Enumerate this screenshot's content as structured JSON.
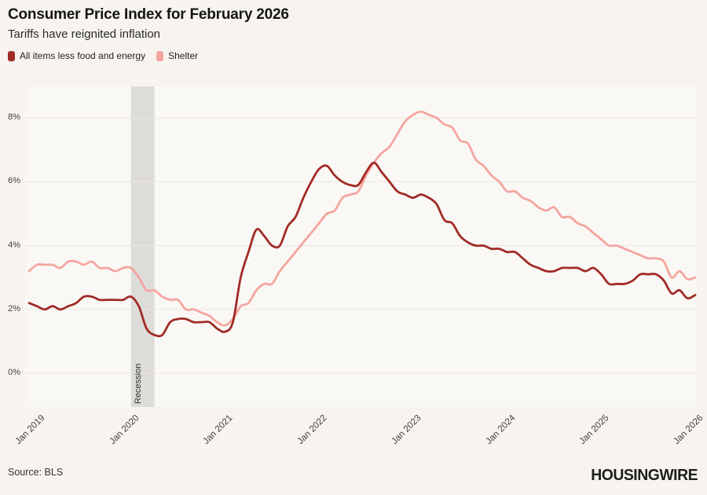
{
  "chart_data": {
    "type": "line",
    "title": "Consumer Price Index for February 2026",
    "subtitle": "Tariffs have reignited inflation",
    "x_start": "2019-01",
    "x_end": "2026-02",
    "x_interval": "monthly",
    "x_tick_labels": [
      "Jan 2019",
      "Jan 2020",
      "Jan 2021",
      "Jan 2022",
      "Jan 2023",
      "Jan 2024",
      "Jan 2025",
      "Jan 2026"
    ],
    "x_tick_month_indices": [
      0,
      12,
      24,
      36,
      48,
      60,
      72,
      84
    ],
    "y_ticks": [
      0,
      2,
      4,
      6,
      8
    ],
    "y_tick_labels": [
      "0%",
      "2%",
      "4%",
      "6%",
      "8%"
    ],
    "ylim": [
      -1,
      9
    ],
    "grid": "horizontal-only",
    "legend_position": "top-left",
    "series": [
      {
        "id": "core",
        "name": "All items less food and energy",
        "color": "#a12b27",
        "values": [
          2.2,
          2.1,
          2.0,
          2.1,
          2.0,
          2.1,
          2.2,
          2.4,
          2.4,
          2.3,
          2.3,
          2.3,
          2.3,
          2.4,
          2.1,
          1.4,
          1.2,
          1.2,
          1.6,
          1.7,
          1.7,
          1.6,
          1.6,
          1.6,
          1.4,
          1.3,
          1.6,
          3.0,
          3.8,
          4.5,
          4.3,
          4.0,
          4.0,
          4.6,
          4.9,
          5.5,
          6.0,
          6.4,
          6.5,
          6.2,
          6.0,
          5.9,
          5.9,
          6.3,
          6.6,
          6.3,
          6.0,
          5.7,
          5.6,
          5.5,
          5.6,
          5.5,
          5.3,
          4.8,
          4.7,
          4.3,
          4.1,
          4.0,
          4.0,
          3.9,
          3.9,
          3.8,
          3.8,
          3.6,
          3.4,
          3.3,
          3.2,
          3.2,
          3.3,
          3.3,
          3.3,
          3.2,
          3.3,
          3.1,
          2.8,
          2.8,
          2.8,
          2.9,
          3.1,
          3.1,
          3.1,
          2.9,
          2.5,
          2.6,
          2.35,
          2.45
        ]
      },
      {
        "id": "shelter",
        "name": "Shelter",
        "color": "#f4a5a0",
        "values": [
          3.2,
          3.4,
          3.4,
          3.4,
          3.3,
          3.5,
          3.5,
          3.4,
          3.5,
          3.3,
          3.3,
          3.2,
          3.3,
          3.3,
          3.0,
          2.6,
          2.6,
          2.4,
          2.3,
          2.3,
          2.0,
          2.0,
          1.9,
          1.8,
          1.6,
          1.5,
          1.7,
          2.1,
          2.2,
          2.6,
          2.8,
          2.8,
          3.2,
          3.5,
          3.8,
          4.1,
          4.4,
          4.7,
          5.0,
          5.1,
          5.5,
          5.6,
          5.7,
          6.2,
          6.6,
          6.9,
          7.1,
          7.5,
          7.9,
          8.1,
          8.2,
          8.1,
          8.0,
          7.8,
          7.7,
          7.3,
          7.2,
          6.7,
          6.5,
          6.2,
          6.0,
          5.7,
          5.7,
          5.5,
          5.4,
          5.2,
          5.1,
          5.2,
          4.9,
          4.9,
          4.7,
          4.6,
          4.4,
          4.2,
          4.0,
          4.0,
          3.9,
          3.8,
          3.7,
          3.6,
          3.6,
          3.5,
          3.0,
          3.2,
          2.95,
          3.0
        ]
      }
    ],
    "annotations": {
      "recession_band": {
        "label": "Recession",
        "start_month_index": 13,
        "end_month_index": 16,
        "color": "#dedcd9"
      }
    }
  },
  "footer": {
    "source": "Source: BLS",
    "logo": "HOUSINGWIRE"
  },
  "colors": {
    "background": "#f7f4ef",
    "gridline": "#e9e5df",
    "tick_text": "#3e3e3e"
  }
}
